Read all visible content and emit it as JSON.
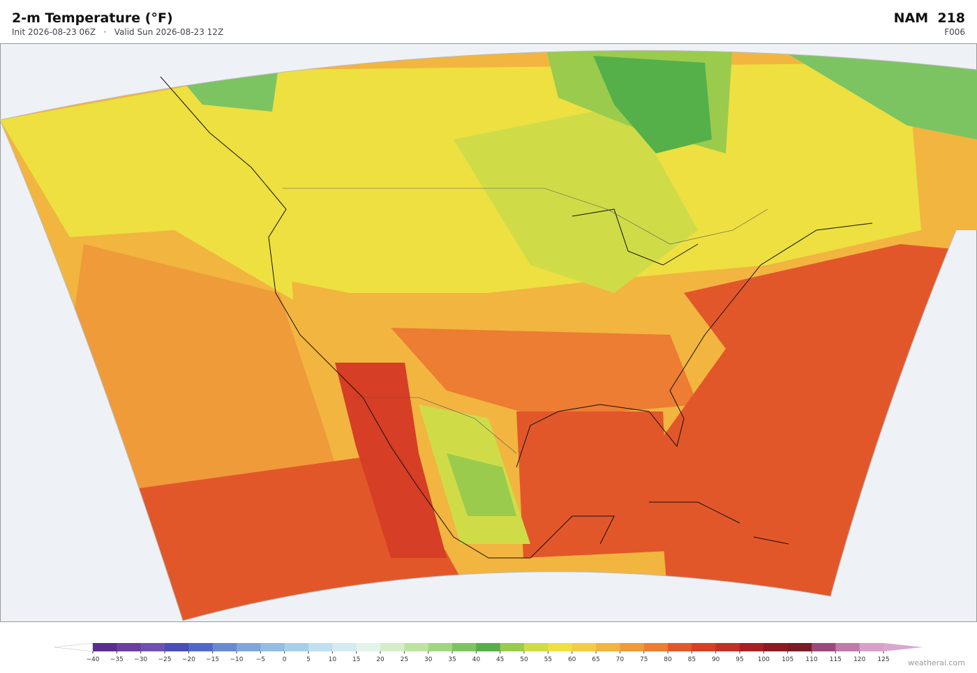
{
  "header": {
    "title": "2-m Temperature  (°F)",
    "subtitle": "Init 2026-08-23 06Z   ·   Valid Sun 2026-08-23 12Z",
    "model": "NAM  218",
    "forecast_hour": "F006"
  },
  "colorbar": {
    "ticks": [
      {
        "value": -40,
        "label": "−40"
      },
      {
        "value": -35,
        "label": "−35"
      },
      {
        "value": -30,
        "label": "−30"
      },
      {
        "value": -25,
        "label": "−25"
      },
      {
        "value": -20,
        "label": "−20"
      },
      {
        "value": -15,
        "label": "−15"
      },
      {
        "value": -10,
        "label": "−10"
      },
      {
        "value": -5,
        "label": "−5"
      },
      0,
      5,
      10,
      15,
      20,
      25,
      30,
      35,
      40,
      45,
      50,
      55,
      60,
      65,
      70,
      75,
      80,
      85,
      90,
      95,
      100,
      105,
      110,
      115,
      120,
      125
    ],
    "colors": [
      "#5b2d8e",
      "#6b3fa0",
      "#7050b0",
      "#4b4db8",
      "#5068c8",
      "#6a8ad0",
      "#7fa6da",
      "#94bde2",
      "#a8cfe8",
      "#bfe0ee",
      "#d4ebf2",
      "#e4f3ea",
      "#d6edc8",
      "#bde3a0",
      "#a0d680",
      "#7cc462",
      "#55b04a",
      "#9acb4c",
      "#cfdc48",
      "#ede040",
      "#f3cc45",
      "#f2b540",
      "#ef9b3a",
      "#ec7d32",
      "#e2572a",
      "#d63e25",
      "#c03025",
      "#a52125",
      "#8d1a22",
      "#7a1a24",
      "#9a4a7a",
      "#c07aaa",
      "#d7a0c8"
    ],
    "under_color": "#ffffff",
    "over_color": "#d8a8d0"
  },
  "footer": {
    "credit": "weatherai.com"
  }
}
